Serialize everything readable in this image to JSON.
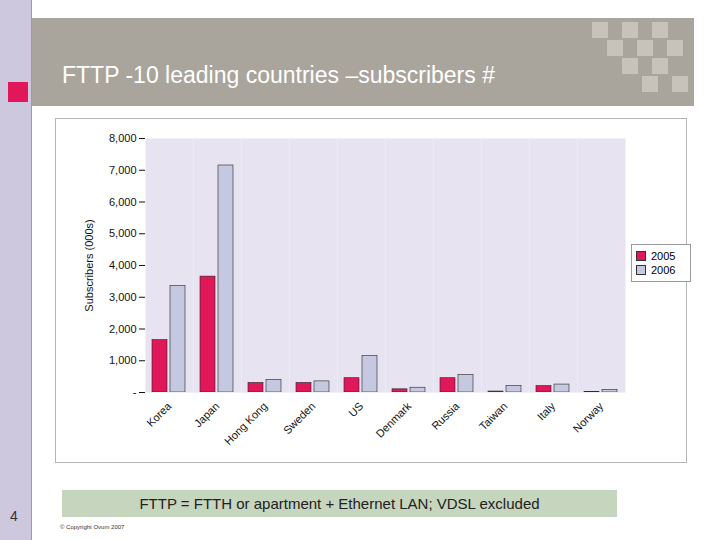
{
  "chart_data": {
    "type": "bar",
    "title": "FTTP -10 leading countries –subscribers #",
    "y_label": "Subscribers (000s)",
    "categories": [
      "Korea",
      "Japan",
      "Hong Kong",
      "Sweden",
      "US",
      "Denmark",
      "Russia",
      "Taiwan",
      "Italy",
      "Norway"
    ],
    "series": [
      {
        "name": "2005",
        "color": "#e0185a",
        "values": [
          1650,
          3650,
          300,
          300,
          450,
          100,
          450,
          30,
          200,
          20
        ]
      },
      {
        "name": "2006",
        "color": "#c6c8e0",
        "values": [
          3350,
          7150,
          400,
          350,
          1150,
          150,
          550,
          200,
          250,
          80
        ]
      }
    ],
    "ylim": [
      0,
      8000
    ],
    "yticks": [
      {
        "value": 0,
        "label": "-"
      },
      {
        "value": 1000,
        "label": "1,000"
      },
      {
        "value": 2000,
        "label": "2,000"
      },
      {
        "value": 3000,
        "label": "3,000"
      },
      {
        "value": 4000,
        "label": "4,000"
      },
      {
        "value": 5000,
        "label": "5,000"
      },
      {
        "value": 6000,
        "label": "6,000"
      },
      {
        "value": 7000,
        "label": "7,000"
      },
      {
        "value": 8000,
        "label": "8,000"
      }
    ],
    "grid": false,
    "legend": "right"
  },
  "footnote": "FTTP = FTTH or apartment + Ethernet LAN; VDSL excluded",
  "page_number": "4",
  "copyright": "© Copyright Ovum 2007"
}
